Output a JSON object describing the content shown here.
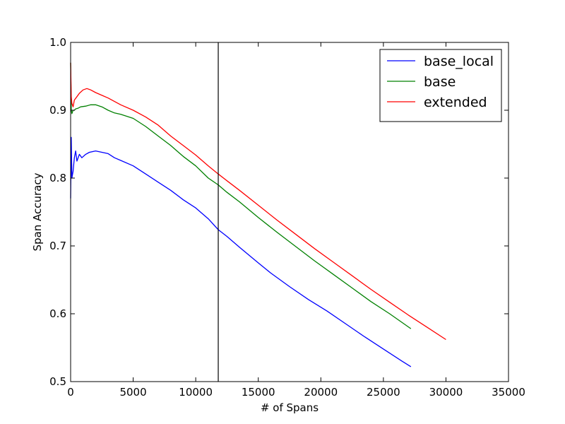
{
  "chart_data": {
    "type": "line",
    "xlabel": "# of Spans",
    "ylabel": "Span Accuracy",
    "xlim": [
      0,
      35000
    ],
    "ylim": [
      0.5,
      1.0
    ],
    "xticks": [
      0,
      5000,
      10000,
      15000,
      20000,
      25000,
      30000,
      35000
    ],
    "xtick_labels": [
      "0",
      "5000",
      "10000",
      "15000",
      "20000",
      "25000",
      "30000",
      "35000"
    ],
    "yticks": [
      0.5,
      0.6,
      0.7,
      0.8,
      0.9,
      1.0
    ],
    "ytick_labels": [
      "0.5",
      "0.6",
      "0.7",
      "0.8",
      "0.9",
      "1.0"
    ],
    "grid": false,
    "legend_position": "top-right",
    "vertical_line_x": 11800,
    "series": [
      {
        "name": "base_local",
        "color": "#0000ff",
        "x": [
          0,
          50,
          100,
          200,
          300,
          400,
          500,
          700,
          900,
          1200,
          1500,
          2000,
          2500,
          3000,
          3500,
          4000,
          5000,
          6000,
          7000,
          8000,
          9000,
          10000,
          11000,
          11800,
          12500,
          13500,
          15000,
          16000,
          17500,
          19000,
          20500,
          22000,
          23500,
          25000,
          26500,
          27200
        ],
        "y": [
          0.77,
          0.86,
          0.8,
          0.81,
          0.83,
          0.84,
          0.825,
          0.835,
          0.83,
          0.835,
          0.838,
          0.84,
          0.838,
          0.836,
          0.83,
          0.826,
          0.818,
          0.806,
          0.794,
          0.782,
          0.768,
          0.756,
          0.74,
          0.724,
          0.714,
          0.698,
          0.675,
          0.66,
          0.64,
          0.621,
          0.604,
          0.585,
          0.566,
          0.548,
          0.53,
          0.522
        ]
      },
      {
        "name": "base",
        "color": "#008000",
        "x": [
          0,
          50,
          100,
          200,
          300,
          400,
          600,
          800,
          1200,
          1600,
          2000,
          2500,
          3000,
          3500,
          4000,
          5000,
          6000,
          7000,
          8000,
          9000,
          10000,
          11000,
          11800,
          12500,
          13500,
          15000,
          16500,
          18000,
          19500,
          21000,
          22500,
          24000,
          25500,
          27200
        ],
        "y": [
          0.97,
          0.9,
          0.895,
          0.9,
          0.9,
          0.902,
          0.903,
          0.905,
          0.906,
          0.908,
          0.908,
          0.905,
          0.9,
          0.896,
          0.894,
          0.888,
          0.876,
          0.862,
          0.848,
          0.832,
          0.818,
          0.8,
          0.79,
          0.779,
          0.765,
          0.742,
          0.72,
          0.699,
          0.678,
          0.658,
          0.638,
          0.618,
          0.6,
          0.578
        ]
      },
      {
        "name": "extended",
        "color": "#ff0000",
        "x": [
          0,
          50,
          100,
          200,
          300,
          500,
          700,
          1000,
          1300,
          1600,
          2000,
          2500,
          3000,
          4000,
          5000,
          6000,
          7000,
          8000,
          9000,
          10000,
          11000,
          11800,
          12500,
          13500,
          15000,
          16500,
          18000,
          19500,
          21000,
          22500,
          24000,
          25500,
          27000,
          28500,
          30000
        ],
        "y": [
          0.97,
          0.92,
          0.91,
          0.905,
          0.915,
          0.92,
          0.925,
          0.93,
          0.932,
          0.93,
          0.926,
          0.922,
          0.918,
          0.908,
          0.9,
          0.89,
          0.878,
          0.862,
          0.848,
          0.834,
          0.818,
          0.806,
          0.796,
          0.782,
          0.76,
          0.738,
          0.717,
          0.696,
          0.676,
          0.656,
          0.636,
          0.617,
          0.598,
          0.58,
          0.562
        ]
      }
    ]
  }
}
